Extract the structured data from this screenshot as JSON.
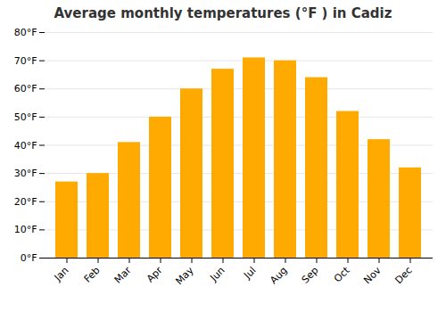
{
  "chart_data": {
    "type": "bar",
    "title": "Average monthly temperatures (°F ) in Cadiz",
    "categories": [
      "Jan",
      "Feb",
      "Mar",
      "Apr",
      "May",
      "Jun",
      "Jul",
      "Aug",
      "Sep",
      "Oct",
      "Nov",
      "Dec"
    ],
    "values": [
      27,
      30,
      41,
      50,
      60,
      67,
      71,
      70,
      64,
      52,
      42,
      32
    ],
    "color": "#FFAA00",
    "ylim": [
      0,
      80
    ],
    "yticks": [
      {
        "value": 0,
        "label": "0°F"
      },
      {
        "value": 10,
        "label": "10°F"
      },
      {
        "value": 20,
        "label": "20°F"
      },
      {
        "value": 30,
        "label": "30°F"
      },
      {
        "value": 40,
        "label": "40°F"
      },
      {
        "value": 50,
        "label": "50°F"
      },
      {
        "value": 60,
        "label": "60°F"
      },
      {
        "value": 70,
        "label": "70°F"
      },
      {
        "value": 80,
        "label": "80°F"
      }
    ],
    "grid": true
  }
}
